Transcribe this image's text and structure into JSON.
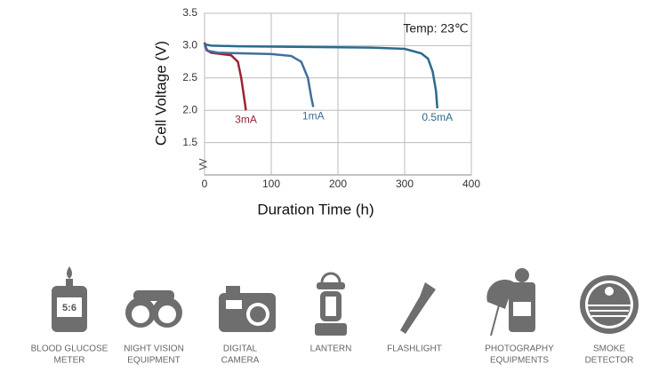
{
  "chart_data": {
    "type": "line",
    "annotation": "Temp: 23℃",
    "ylabel": "Cell Voltage (V)",
    "xlabel": "Duration Time (h)",
    "xlim": [
      0,
      400
    ],
    "xticks": [
      0,
      100,
      200,
      300,
      400
    ],
    "ylim": [
      1.0,
      3.5
    ],
    "yticks": [
      {
        "value": 1.5,
        "label": "1.5"
      },
      {
        "value": 2,
        "label": "2.0"
      },
      {
        "value": 2.5,
        "label": "2.5"
      },
      {
        "value": 3,
        "label": "3.0"
      },
      {
        "value": 3.5,
        "label": "3.5"
      }
    ],
    "grid": true,
    "series": [
      {
        "name": "3mA",
        "color": "#9b2335",
        "x": [
          0,
          3,
          10,
          25,
          40,
          50,
          55,
          60,
          62
        ],
        "values": [
          3.05,
          2.93,
          2.89,
          2.87,
          2.85,
          2.75,
          2.5,
          2.15,
          2.0
        ]
      },
      {
        "name": "1mA",
        "color": "#3f6f9c",
        "x": [
          0,
          5,
          20,
          60,
          100,
          130,
          145,
          155,
          160,
          163
        ],
        "values": [
          3.0,
          2.92,
          2.89,
          2.88,
          2.87,
          2.84,
          2.75,
          2.5,
          2.2,
          2.05
        ]
      },
      {
        "name": "0.5mA",
        "color": "#2a6b8c",
        "x": [
          0,
          10,
          50,
          150,
          250,
          300,
          325,
          335,
          342,
          347,
          349
        ],
        "values": [
          3.02,
          3.0,
          2.99,
          2.98,
          2.97,
          2.95,
          2.88,
          2.8,
          2.6,
          2.3,
          2.03
        ]
      }
    ]
  },
  "applications": [
    [
      "BLOOD GLUCOSE",
      "METER"
    ],
    [
      "NIGHT VISION",
      "EQUIPMENT"
    ],
    [
      "DIGITAL",
      "CAMERA"
    ],
    [
      "LANTERN"
    ],
    [
      "FLASHLIGHT"
    ],
    [
      "PHOTOGRAPHY",
      "EQUIPMENTS"
    ],
    [
      "SMOKE",
      "DETECTOR"
    ]
  ]
}
